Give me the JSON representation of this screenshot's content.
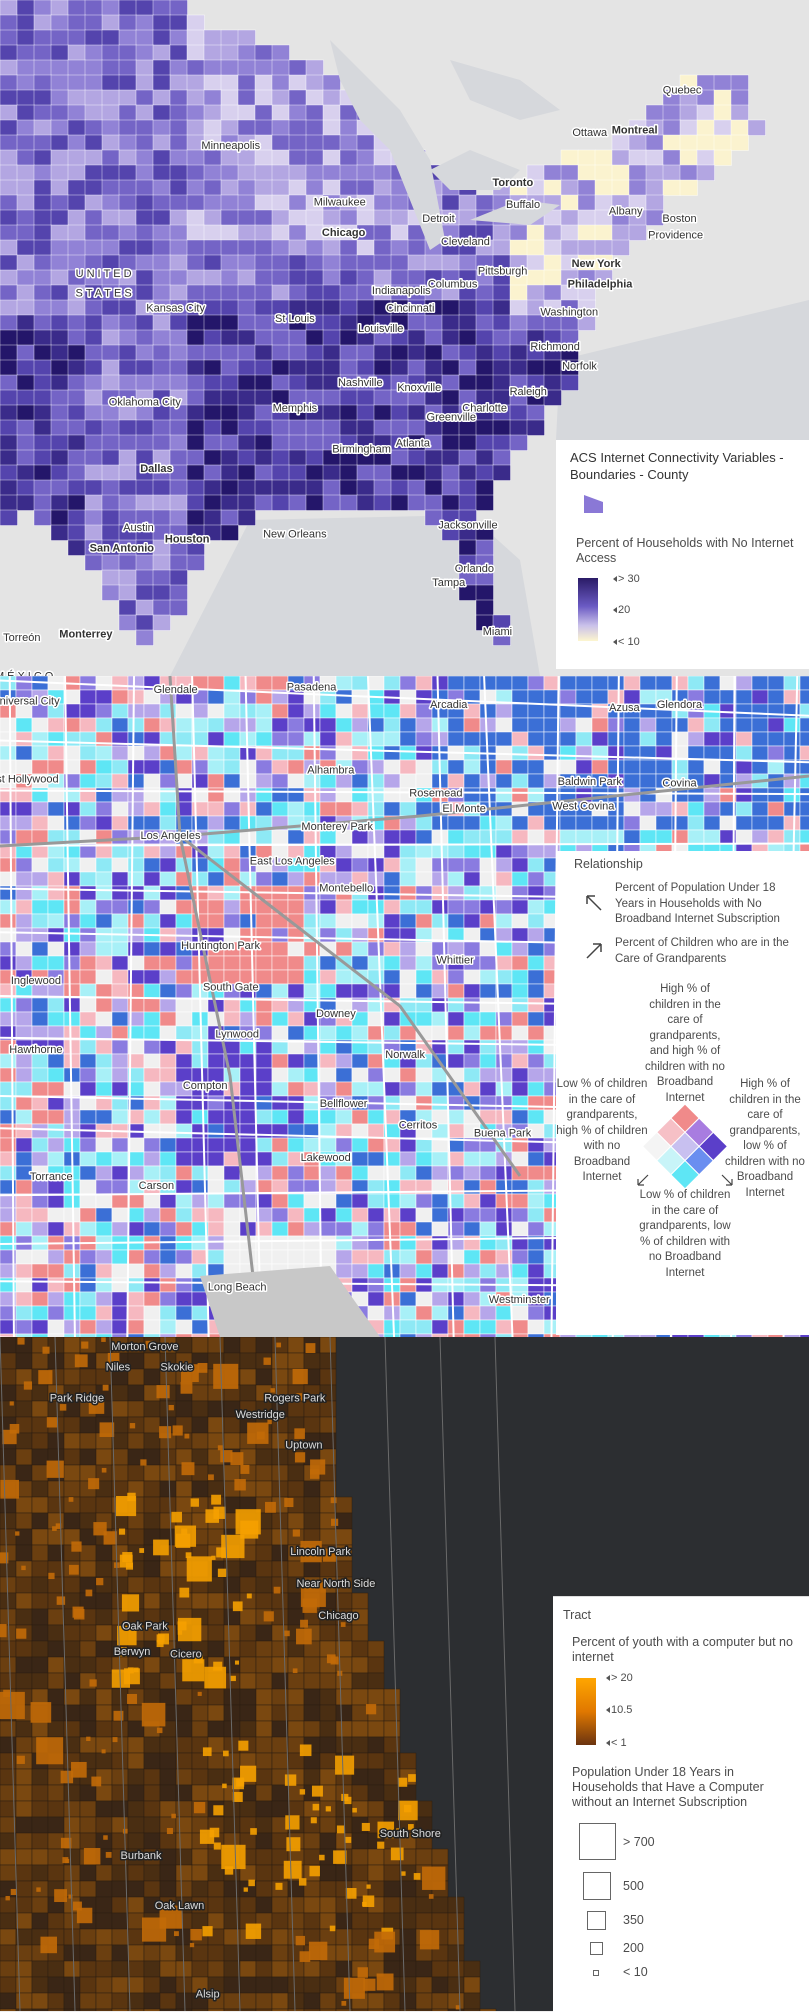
{
  "map1": {
    "places": [
      "Quebec",
      "Ottawa",
      "Montreal",
      "Minneapolis",
      "Toronto",
      "Milwaukee",
      "Detroit",
      "Buffalo",
      "Albany",
      "Chicago",
      "Cleveland",
      "Boston",
      "Providence",
      "UNITED",
      "STATES",
      "New York",
      "Pittsburgh",
      "Philadelphia",
      "Columbus",
      "Indianapolis",
      "Kansas City",
      "Cincinnati",
      "Washington",
      "St Louis",
      "Louisville",
      "Richmond",
      "Norfolk",
      "Nashville",
      "Knoxville",
      "Raleigh",
      "Oklahoma City",
      "Memphis",
      "Charlotte",
      "Greenville",
      "Birmingham",
      "Atlanta",
      "Dallas",
      "Austin",
      "Houston",
      "San Antonio",
      "New Orleans",
      "Jacksonville",
      "Orlando",
      "Tampa",
      "Miami",
      "Monterrey",
      "Torreón",
      "MÉXICO"
    ],
    "legend": {
      "layer_title": "ACS Internet Connectivity Variables - Boundaries - County",
      "field_title": "Percent of Households with No Internet Access",
      "ramp_labels": [
        "> 30",
        "20",
        "< 10"
      ]
    }
  },
  "map2": {
    "places": [
      "Glendale",
      "Pasadena",
      "Arcadia",
      "Azusa",
      "Glendora",
      "Universal City",
      "West Hollywood",
      "Alhambra",
      "Rosemead",
      "Baldwin Park",
      "Covina",
      "El Monte",
      "West Covina",
      "Monterey Park",
      "Los Angeles",
      "East Los Angeles",
      "Montebello",
      "Inglewood",
      "Huntington Park",
      "South Gate",
      "Whittier",
      "Downey",
      "Lynwood",
      "Hawthorne",
      "Norwalk",
      "Compton",
      "Bellflower",
      "Cerritos",
      "Buena Park",
      "Torrance",
      "Carson",
      "Lakewood",
      "Long Beach",
      "Westminster"
    ],
    "legend": {
      "title": "Relationship",
      "items": [
        "Percent of Population Under 18 Years in Households with No Broadband Internet Subscription",
        "Percent of Children who are in the Care of Grandparents"
      ],
      "corners": {
        "top": "High % of children in the care of grandparents, and high % of children with no Broadband Internet",
        "left": "Low % of children in the care of grandparents, high % of children with no Broadband Internet",
        "right": "High % of children in the care of grandparents, low % of children with no Broadband Internet",
        "bottom": "Low % of children in the care of grandparents, low % of children with no Broadband Internet"
      }
    }
  },
  "map3": {
    "places": [
      "Morton Grove",
      "Niles",
      "Skokie",
      "Park Ridge",
      "Rogers Park",
      "Westridge",
      "Uptown",
      "Lincoln Park",
      "Near North Side",
      "Chicago",
      "Oak Park",
      "Cicero",
      "Berwyn",
      "South Shore",
      "Burbank",
      "Oak Lawn",
      "Alsip"
    ],
    "legend": {
      "layer_title": "Tract",
      "color_title": "Percent of youth with a computer but no internet",
      "color_labels": [
        "> 20",
        "10.5",
        "< 1"
      ],
      "size_title": "Population Under 18 Years in Households that Have a Computer without an Internet Subscription",
      "size_labels": [
        "> 700",
        "500",
        "350",
        "200",
        "< 10"
      ]
    }
  }
}
